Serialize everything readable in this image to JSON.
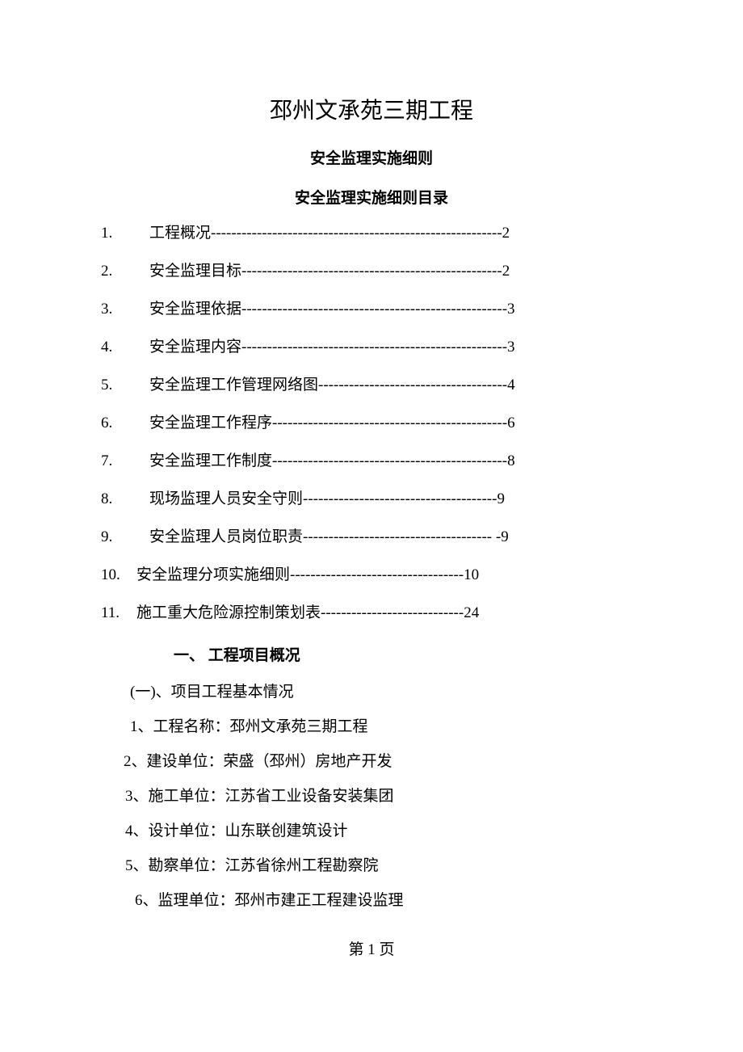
{
  "title": "邳州文承苑三期工程",
  "subtitle1": "安全监理实施细则",
  "subtitle2": "安全监理实施细则目录",
  "toc": [
    {
      "num": "1.",
      "label": "工程概况",
      "dash": "---------------------------------------------------------",
      "page": "2"
    },
    {
      "num": "2.",
      "label": "安全监理目标",
      "dash": "---------------------------------------------------",
      "page": "2"
    },
    {
      "num": "3.",
      "label": "安全监理依据",
      "dash": "----------------------------------------------------",
      "page": "3"
    },
    {
      "num": "4.",
      "label": "安全监理内容",
      "dash": "----------------------------------------------------",
      "page": "3"
    },
    {
      "num": "5.",
      "label": "安全监理工作管理网络图",
      "dash": "-------------------------------------",
      "page": "4"
    },
    {
      "num": "6.",
      "label": "安全监理工作程序",
      "dash": "----------------------------------------------",
      "page": "6"
    },
    {
      "num": "7.",
      "label": "安全监理工作制度",
      "dash": "----------------------------------------------",
      "page": "8"
    },
    {
      "num": "8.",
      "label": "现场监理人员安全守则 ",
      "dash": "--------------------------------------",
      "page": "9"
    },
    {
      "num": "9.",
      "label": "安全监理人员岗位职责",
      "dash": "------------------------------------- -",
      "page": "9"
    },
    {
      "num": "10.",
      "label": "安全监理分项实施细则   ",
      "dash": "----------------------------------",
      "page": "10",
      "wide": true
    },
    {
      "num": "11.",
      "label": "施工重大危险源控制策划表  ",
      "dash": "----------------------------",
      "page": "24",
      "wide": true
    }
  ],
  "section_heading": "一、 工程项目概况",
  "body": [
    {
      "cls": "l1",
      "text": "(一)、项目工程基本情况"
    },
    {
      "cls": "l1",
      "text": "1、工程名称：邳州文承苑三期工程"
    },
    {
      "cls": "l2",
      "text": "2、建设单位：荣盛（邳州）房地产开发"
    },
    {
      "cls": "l3",
      "text": "3、施工单位：江苏省工业设备安装集团"
    },
    {
      "cls": "l4",
      "text": "4、设计单位：山东联创建筑设计"
    },
    {
      "cls": "l5",
      "text": "5、勘察单位：江苏省徐州工程勘察院"
    },
    {
      "cls": "l6",
      "text": "6、监理单位：邳州市建正工程建设监理"
    }
  ],
  "footer": "第 1 页",
  "colors": {
    "text": "#000000",
    "background": "#ffffff"
  },
  "typography": {
    "title_fontsize": 28,
    "body_fontsize": 19,
    "font_family": "SimSun"
  }
}
